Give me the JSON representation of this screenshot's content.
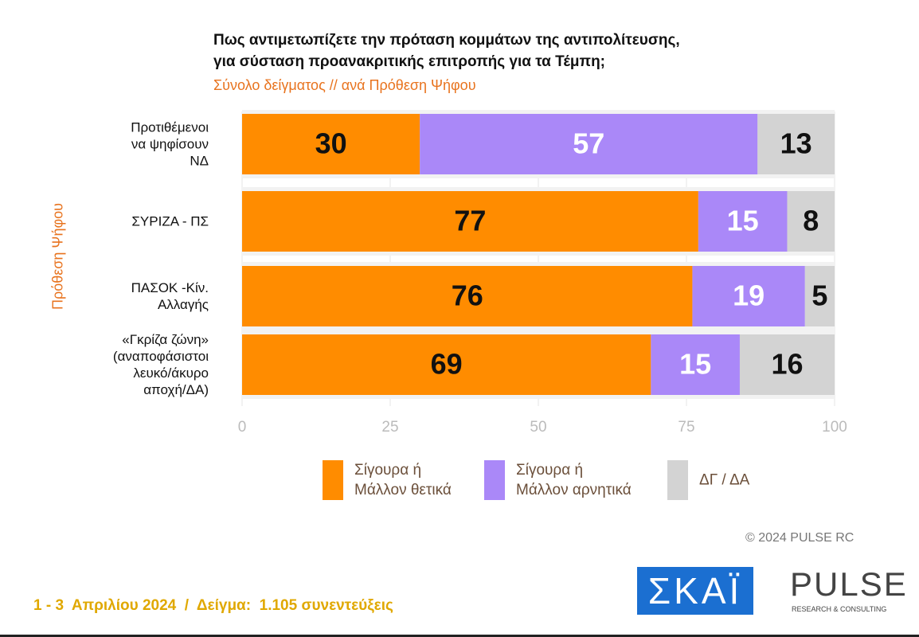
{
  "chart_data": {
    "type": "stacked-bar-horizontal",
    "title": "Πως αντιμετωπίζετε την πρόταση κομμάτων της αντιπολίτευσης,\nγια σύσταση προανακριτικής επιτροπής για τα Τέμπη;",
    "subtitle": "Σύνολο δείγματος // ανά Πρόθεση Ψήφου",
    "y_label": "Πρόθεση Ψήφου",
    "categories": [
      "Προτιθέμενοι\nνα ψηφίσουν\nΝΔ",
      "ΣΥΡΙΖΑ - ΠΣ",
      "ΠΑΣΟΚ -Κίν.\nΑλλαγής",
      "«Γκρίζα ζώνη»\n(αναποφάσιστοι\nλευκό/άκυρο\nαποχή/ΔΑ)"
    ],
    "series": [
      {
        "name": "Σίγουρα ή\nΜάλλον θετικά",
        "color": "#ff8c00",
        "label_color": "#111111",
        "values": [
          30,
          77,
          76,
          69
        ]
      },
      {
        "name": "Σίγουρα ή\nΜάλλον αρνητικά",
        "color": "#aa88f8",
        "label_color": "#ffffff",
        "values": [
          57,
          15,
          19,
          15
        ]
      },
      {
        "name": "ΔΓ / ΔΑ",
        "color": "#d3d3d3",
        "label_color": "#111111",
        "values": [
          13,
          8,
          5,
          16
        ]
      }
    ],
    "xlim": [
      0,
      100
    ],
    "xticks": [
      0,
      25,
      50,
      75,
      100
    ],
    "grid": true
  },
  "copyright": "© 2024 PULSE RC",
  "footer": "1 - 3  Απριλίου 2024  /  Δείγμα:  1.105 συνεντεύξεις",
  "logos": {
    "skai": "ΣΚΑΪ",
    "pulse": "PULSE",
    "pulse_tagline": "RESEARCH & CONSULTING"
  }
}
